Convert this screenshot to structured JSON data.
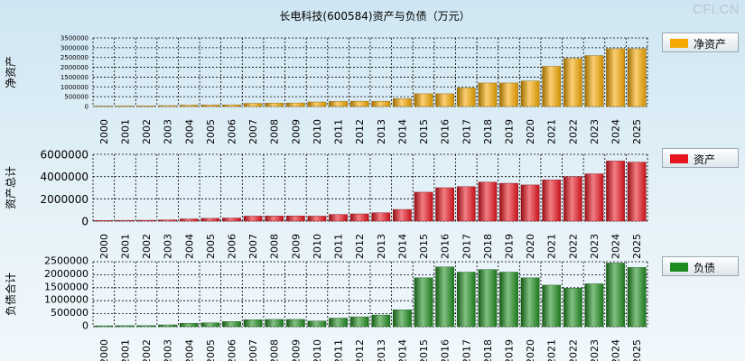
{
  "watermark": "CFi.CN",
  "chart_data": {
    "type": "bar",
    "title": "长电科技(600584)资产与负债（万元）",
    "categories": [
      "2000",
      "2001",
      "2002",
      "2003",
      "2004",
      "2005",
      "2006",
      "2007",
      "2008",
      "2009",
      "2010",
      "2011",
      "2012",
      "2013",
      "2014",
      "2015",
      "2016",
      "2017",
      "2018",
      "2019",
      "2020",
      "2021",
      "2022",
      "2023",
      "2024",
      "2025"
    ],
    "panels": [
      {
        "name": "净资产",
        "ylabel": "净资产",
        "legend": "净资产",
        "color": "#f5a800",
        "ylim": [
          0,
          3500000
        ],
        "yticks": [
          0,
          500000,
          1000000,
          1500000,
          2000000,
          2500000,
          3000000,
          3500000
        ],
        "ytick_labels": [
          "0",
          "500000",
          "1000000",
          "1500000",
          "2000000",
          "2500000",
          "3000000",
          "3500000"
        ],
        "values": [
          20000,
          25000,
          30000,
          45000,
          70000,
          80000,
          85000,
          160000,
          170000,
          180000,
          230000,
          260000,
          270000,
          270000,
          400000,
          650000,
          650000,
          950000,
          1200000,
          1200000,
          1300000,
          2050000,
          2450000,
          2600000,
          2950000,
          2950000
        ]
      },
      {
        "name": "资产",
        "ylabel": "资产总计",
        "legend": "资产",
        "color": "#e8141e",
        "ylim": [
          0,
          6000000
        ],
        "yticks": [
          0,
          2000000,
          4000000,
          6000000
        ],
        "ytick_labels": [
          "0",
          "2000000",
          "4000000",
          "6000000"
        ],
        "values": [
          60000,
          70000,
          80000,
          110000,
          200000,
          250000,
          280000,
          450000,
          460000,
          470000,
          450000,
          600000,
          650000,
          750000,
          1050000,
          2600000,
          3000000,
          3100000,
          3500000,
          3400000,
          3250000,
          3700000,
          4000000,
          4250000,
          5400000,
          5300000
        ]
      },
      {
        "name": "负债",
        "ylabel": "负债合计",
        "legend": "负债",
        "color": "#1e8c1e",
        "ylim": [
          0,
          2500000
        ],
        "yticks": [
          0,
          500000,
          1000000,
          1500000,
          2000000,
          2500000
        ],
        "ytick_labels": [
          "0",
          "500000",
          "1000000",
          "1500000",
          "2000000",
          "2500000"
        ],
        "values": [
          35000,
          40000,
          45000,
          70000,
          130000,
          150000,
          200000,
          270000,
          280000,
          280000,
          220000,
          330000,
          380000,
          450000,
          650000,
          1880000,
          2300000,
          2100000,
          2200000,
          2100000,
          1880000,
          1600000,
          1480000,
          1650000,
          2450000,
          2280000
        ]
      }
    ]
  }
}
